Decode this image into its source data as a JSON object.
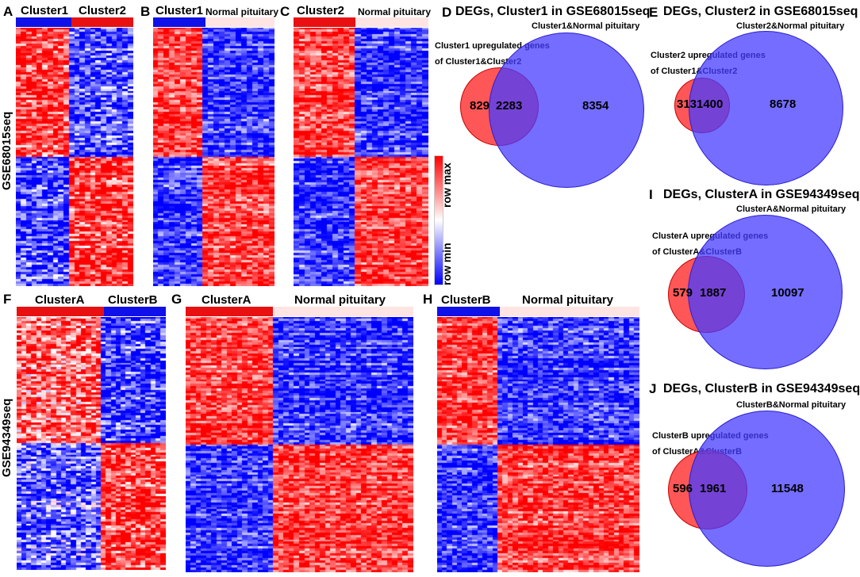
{
  "colors": {
    "red": "#ff0000",
    "blue": "#0000ff",
    "pink": "#ffe0e0"
  },
  "panels": {
    "A": {
      "label": "A",
      "g1": "Cluster1",
      "g2": "Cluster2"
    },
    "B": {
      "label": "B",
      "g1": "Cluster1",
      "g2": "Normal pituitary"
    },
    "C": {
      "label": "C",
      "g1": "Cluster2",
      "g2": "Normal pituitary"
    },
    "F": {
      "label": "F",
      "g1": "ClusterA",
      "g2": "ClusterB"
    },
    "G": {
      "label": "G",
      "g1": "ClusterA",
      "g2": "Normal pituitary"
    },
    "H": {
      "label": "H",
      "g1": "ClusterB",
      "g2": "Normal pituitary"
    }
  },
  "dataset1": "GSE68015seq",
  "dataset2": "GSE94349seq",
  "legend": {
    "max": "row max",
    "min": "row min"
  },
  "venns": {
    "D": {
      "label": "D",
      "title": "DEGs, Cluster1 in GSE68015seq",
      "big": "Cluster1&Normal pituitary",
      "sub1": "Cluster1 upregulated genes",
      "sub2": "of Cluster1&Cluster2",
      "left": 829,
      "mid": 2283,
      "right": 8354
    },
    "E": {
      "label": "E",
      "title": "DEGs, Cluster2 in GSE68015seq",
      "big": "Cluster2&Normal pituitary",
      "sub1": "Cluster2 upregulated genes",
      "sub2": "of Cluster1&Cluster2",
      "left": 313,
      "mid": 1400,
      "right": 8678
    },
    "I": {
      "label": "I",
      "title": "DEGs, ClusterA in GSE94349seq",
      "big": "ClusterA&Normal pituitary",
      "sub1": "ClusterA upregulated genes",
      "sub2": "of ClusterA&ClusterB",
      "left": 579,
      "mid": 1887,
      "right": 10097
    },
    "J": {
      "label": "J",
      "title": "DEGs, ClusterB in GSE94349seq",
      "big": "ClusterB&Normal pituitary",
      "sub1": "ClusterB upregulated genes",
      "sub2": "of ClusterA&ClusterB",
      "left": 596,
      "mid": 1961,
      "right": 11548
    }
  }
}
